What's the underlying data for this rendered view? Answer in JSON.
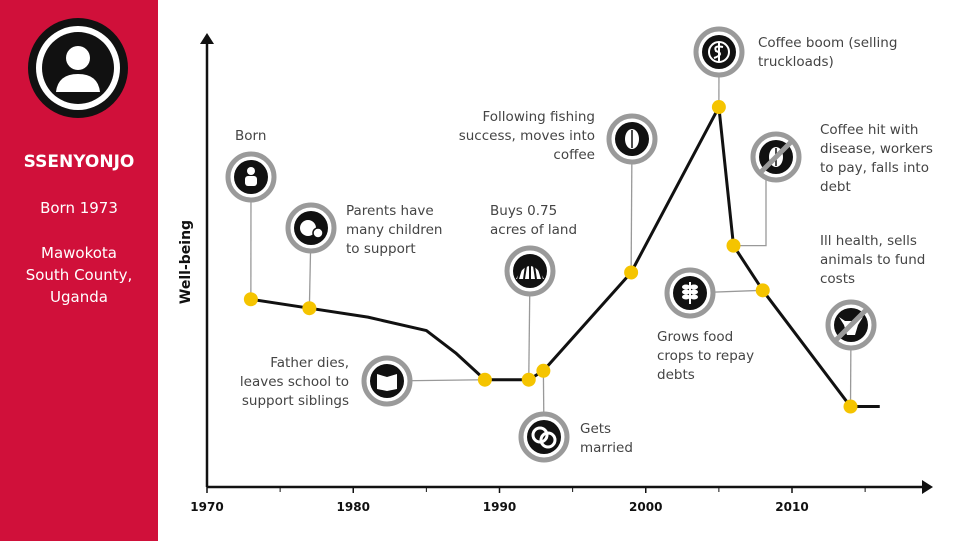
{
  "profile": {
    "name": "SSENYONJO",
    "born": "Born 1973",
    "location": "Mawokota South County, Uganda"
  },
  "chart_data": {
    "type": "line",
    "y_label": "Well-being",
    "xlim": [
      1970,
      2019
    ],
    "ylim": [
      0,
      100
    ],
    "xticks": [
      1970,
      1980,
      1990,
      2000,
      2010
    ],
    "xminor_ticks": [
      1975,
      1985,
      1995,
      2005,
      2015
    ],
    "series": [
      {
        "color": "#111111",
        "x": [
          1973,
          1977,
          1981,
          1985,
          1987,
          1989,
          1992,
          1993,
          1999,
          2005,
          2006,
          2008,
          2014,
          2016
        ],
        "values": [
          42,
          40,
          38,
          35,
          30,
          24,
          24,
          26,
          48,
          85,
          54,
          44,
          18,
          18
        ]
      }
    ],
    "marker_color": "#f5c400",
    "events": [
      {
        "x": 1973,
        "value": 42,
        "label": "Born"
      },
      {
        "x": 1977,
        "value": 40,
        "label": "Parents have many children to support"
      },
      {
        "x": 1989,
        "value": 24,
        "label": "Father dies, leaves school to support siblings"
      },
      {
        "x": 1992,
        "value": 24,
        "label": "Buys 0.75 acres of land"
      },
      {
        "x": 1993,
        "value": 26,
        "label": "Gets married"
      },
      {
        "x": 1999,
        "value": 48,
        "label": "Following fishing success, moves into coffee"
      },
      {
        "x": 2005,
        "value": 85,
        "label": "Coffee boom (selling truckloads)"
      },
      {
        "x": 2006,
        "value": 54,
        "label": "Coffee hit with disease, workers to pay, falls into debt"
      },
      {
        "x": 2008,
        "value": 44,
        "label": "Grows food crops to repay debts"
      },
      {
        "x": 2014,
        "value": 18,
        "label": "Ill health, sells animals to fund costs"
      }
    ]
  }
}
